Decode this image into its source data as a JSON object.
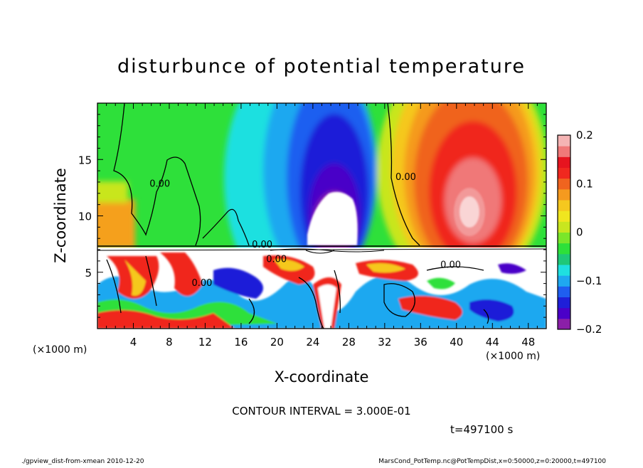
{
  "chart_data": {
    "type": "heatmap",
    "title": "disturbunce of potential temperature",
    "xlabel": "X-coordinate",
    "ylabel": "Z-coordinate",
    "x_unit": "(×1000 m)",
    "z_unit": "(×1000 m)",
    "xlim": [
      0,
      50
    ],
    "ylim": [
      0,
      20
    ],
    "x_ticks": [
      4,
      8,
      12,
      16,
      20,
      24,
      28,
      32,
      36,
      40,
      44,
      48
    ],
    "y_ticks": [
      5,
      10,
      15
    ],
    "colorbar": {
      "range": [
        -0.2,
        0.2
      ],
      "ticks": [
        {
          "value": 0.2,
          "label": "0.2"
        },
        {
          "value": 0.1,
          "label": "0.1"
        },
        {
          "value": 0.0,
          "label": "0"
        },
        {
          "value": -0.1,
          "label": "−0.1"
        },
        {
          "value": -0.2,
          "label": "−0.2"
        }
      ],
      "colors": [
        "#8b1fa8",
        "#4a00c8",
        "#1f1fd8",
        "#1f5ef0",
        "#1fa8f0",
        "#1fe0e0",
        "#1fc878",
        "#2ee03a",
        "#7ae62a",
        "#c8e61f",
        "#f0e61f",
        "#f5c81f",
        "#f59a1f",
        "#f0641f",
        "#f0281f",
        "#e6141f",
        "#f07878",
        "#f5b4b4"
      ]
    },
    "contour_labels": [
      {
        "x": 5.8,
        "z": 12.6,
        "text": "0.00"
      },
      {
        "x": 33.2,
        "z": 13.2,
        "text": "0.00"
      },
      {
        "x": 17.2,
        "z": 7.2,
        "text": "0.00"
      },
      {
        "x": 18.8,
        "z": 5.9,
        "text": "0.00"
      },
      {
        "x": 38.2,
        "z": 5.4,
        "text": "0.00"
      },
      {
        "x": 10.5,
        "z": 3.8,
        "text": "0.00"
      }
    ],
    "contour_interval": "CONTOUR INTERVAL = 3.000E-01",
    "time": "t=497100 s"
  },
  "footer": {
    "left": "./gpview_dist-from-xmean  2010-12-20",
    "right": "MarsCond_PotTemp.nc@PotTempDist,x=0:50000,z=0:20000,t=497100"
  }
}
